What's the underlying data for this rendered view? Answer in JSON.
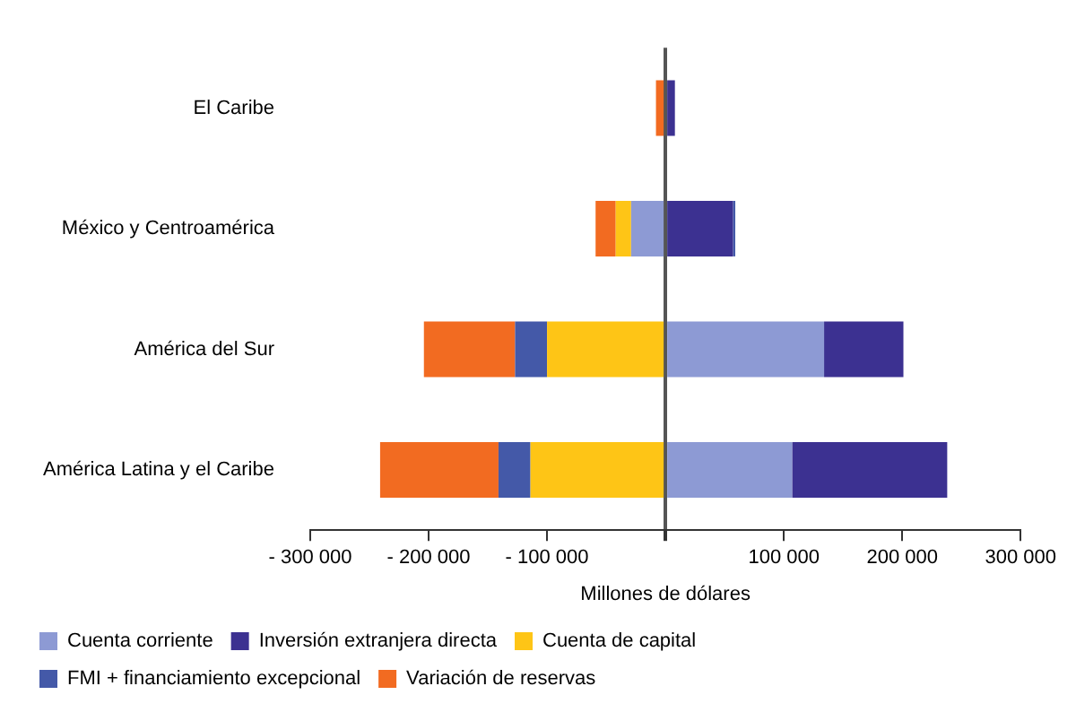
{
  "chart_data": {
    "type": "bar",
    "orientation": "horizontal",
    "stacked": true,
    "xlabel": "Millones de dólares",
    "categories": [
      "El Caribe",
      "México y Centroamérica",
      "América del Sur",
      "América Latina y el Caribe"
    ],
    "series": [
      {
        "name": "Cuenta corriente",
        "color": "#8d9ad4",
        "values": [
          0,
          -29000,
          134000,
          107000
        ]
      },
      {
        "name": "Inversión extranjera directa",
        "color": "#3c3191",
        "values": [
          8000,
          57000,
          67000,
          131000
        ]
      },
      {
        "name": "Cuenta de capital",
        "color": "#fec516",
        "values": [
          0,
          -13000,
          -100000,
          -114000
        ]
      },
      {
        "name": "FMI + financiamiento excepcional",
        "color": "#4459a8",
        "values": [
          0,
          2000,
          -27000,
          -27000
        ]
      },
      {
        "name": "Variación de reservas",
        "color": "#f26b21",
        "values": [
          -8000,
          -17000,
          -77000,
          -100000
        ]
      }
    ],
    "xlim": [
      -300000,
      300000
    ],
    "xticks": [
      {
        "value": -300000,
        "label": "- 300 000"
      },
      {
        "value": -200000,
        "label": "- 200 000"
      },
      {
        "value": -100000,
        "label": "- 100 000"
      },
      {
        "value": 0,
        "label": null
      },
      {
        "value": 100000,
        "label": "100 000"
      },
      {
        "value": 200000,
        "label": "200 000"
      },
      {
        "value": 300000,
        "label": "300 000"
      }
    ],
    "legend": "bottom"
  }
}
